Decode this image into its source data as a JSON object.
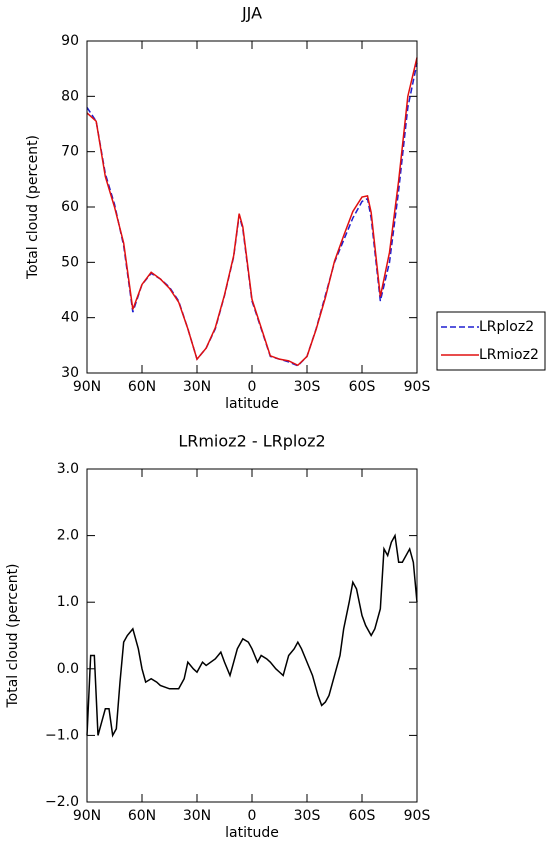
{
  "chart_data": [
    {
      "type": "line",
      "title": "JJA",
      "x_label": "latitude",
      "y_label": "Total cloud (percent)",
      "x": [
        90,
        85,
        80,
        75,
        70,
        65,
        60,
        55,
        50,
        45,
        40,
        35,
        30,
        25,
        20,
        15,
        10,
        7,
        5,
        0,
        -5,
        -10,
        -15,
        -20,
        -25,
        -30,
        -35,
        -40,
        -45,
        -50,
        -55,
        -60,
        -63,
        -65,
        -70,
        -75,
        -80,
        -85,
        -90
      ],
      "series": [
        {
          "name": "LRploz2",
          "color": "#1f1fd0",
          "style": "dashed",
          "values": [
            78,
            75.5,
            66,
            60.5,
            53,
            41,
            46,
            48,
            47,
            45.5,
            43,
            38,
            32.5,
            34.5,
            38,
            44,
            51,
            58.5,
            56,
            43,
            38,
            33,
            32.5,
            32,
            31.3,
            33,
            38,
            44,
            50,
            54,
            58,
            61,
            61.5,
            58,
            43,
            50,
            63,
            78,
            86
          ]
        },
        {
          "name": "LRmioz2",
          "color": "#e01010",
          "style": "solid",
          "values": [
            77,
            75.5,
            65.5,
            60,
            53.5,
            41.5,
            46,
            48.2,
            47,
            45.3,
            42.8,
            38,
            32.5,
            34.5,
            38.2,
            44.1,
            51.2,
            58.8,
            56.4,
            43.3,
            38.2,
            33.1,
            32.5,
            32.2,
            31.4,
            33,
            37.9,
            43.6,
            50.2,
            54.8,
            59.2,
            61.8,
            62,
            59,
            43.8,
            51.8,
            64.8,
            80,
            87
          ]
        }
      ],
      "xlim": [
        90,
        -90
      ],
      "xticks": [
        {
          "value": 90,
          "label": "90N"
        },
        {
          "value": 60,
          "label": "60N"
        },
        {
          "value": 30,
          "label": "30N"
        },
        0,
        {
          "value": -30,
          "label": "30S"
        },
        {
          "value": -60,
          "label": "60S"
        },
        {
          "value": -90,
          "label": "90S"
        }
      ],
      "ylim": [
        30,
        90
      ],
      "yticks": [
        30,
        40,
        50,
        60,
        70,
        80,
        90
      ],
      "legend": "right"
    },
    {
      "type": "line",
      "title": "LRmioz2 - LRploz2",
      "x_label": "latitude",
      "y_label": "Total cloud (percent)",
      "x": [
        90,
        88,
        86,
        84,
        82,
        80,
        78,
        76,
        74,
        72,
        70,
        68,
        65,
        62,
        60,
        58,
        55,
        52,
        50,
        45,
        40,
        37,
        35,
        32,
        30,
        27,
        25,
        20,
        17,
        15,
        12,
        10,
        8,
        5,
        2,
        0,
        -3,
        -5,
        -8,
        -10,
        -13,
        -15,
        -17,
        -20,
        -23,
        -25,
        -27,
        -30,
        -33,
        -36,
        -38,
        -40,
        -42,
        -45,
        -48,
        -50,
        -53,
        -55,
        -57,
        -60,
        -62,
        -65,
        -67,
        -70,
        -72,
        -74,
        -76,
        -78,
        -80,
        -82,
        -86,
        -88,
        -90
      ],
      "series": [
        {
          "color": "#000000",
          "style": "solid",
          "values": [
            -1.0,
            0.2,
            0.2,
            -1.0,
            -0.8,
            -0.6,
            -0.6,
            -1.0,
            -0.9,
            -0.2,
            0.4,
            0.5,
            0.6,
            0.3,
            0.0,
            -0.2,
            -0.15,
            -0.2,
            -0.25,
            -0.3,
            -0.3,
            -0.15,
            0.1,
            0.0,
            -0.05,
            0.1,
            0.05,
            0.15,
            0.25,
            0.1,
            -0.1,
            0.1,
            0.3,
            0.45,
            0.4,
            0.3,
            0.1,
            0.2,
            0.15,
            0.1,
            0.0,
            -0.05,
            -0.1,
            0.2,
            0.3,
            0.4,
            0.3,
            0.1,
            -0.1,
            -0.4,
            -0.55,
            -0.5,
            -0.4,
            -0.1,
            0.2,
            0.6,
            1.0,
            1.3,
            1.2,
            0.8,
            0.65,
            0.5,
            0.6,
            0.9,
            1.8,
            1.7,
            1.9,
            2.0,
            1.6,
            1.6,
            1.8,
            1.6,
            1.0
          ]
        }
      ],
      "xlim": [
        90,
        -90
      ],
      "xticks": [
        {
          "value": 90,
          "label": "90N"
        },
        {
          "value": 60,
          "label": "60N"
        },
        {
          "value": 30,
          "label": "30N"
        },
        0,
        {
          "value": -30,
          "label": "30S"
        },
        {
          "value": -60,
          "label": "60S"
        },
        {
          "value": -90,
          "label": "90S"
        }
      ],
      "ylim": [
        -2,
        3
      ],
      "yticks": [
        {
          "value": -2,
          "label": "−2.0"
        },
        {
          "value": -1,
          "label": "−1.0"
        },
        {
          "value": 0,
          "label": "0.0"
        },
        {
          "value": 1,
          "label": "1.0"
        },
        {
          "value": 2,
          "label": "2.0"
        },
        {
          "value": 3,
          "label": "3.0"
        }
      ]
    }
  ]
}
